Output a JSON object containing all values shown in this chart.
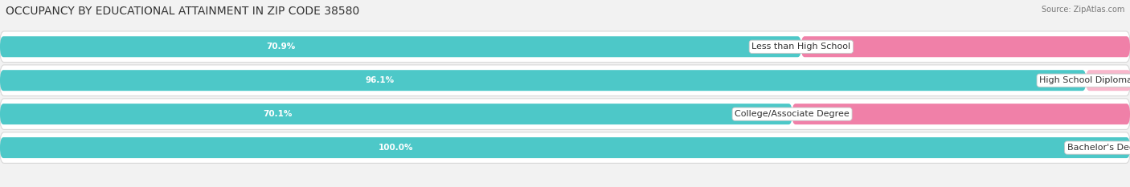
{
  "title": "OCCUPANCY BY EDUCATIONAL ATTAINMENT IN ZIP CODE 38580",
  "source": "Source: ZipAtlas.com",
  "categories": [
    "Less than High School",
    "High School Diploma",
    "College/Associate Degree",
    "Bachelor's Degree or higher"
  ],
  "owner_values": [
    70.9,
    96.1,
    70.1,
    100.0
  ],
  "renter_values": [
    29.1,
    4.0,
    29.9,
    0.0
  ],
  "owner_color": "#4DC8C8",
  "renter_color": "#F080A8",
  "renter_color_light": "#F8B8CC",
  "background_color": "#f2f2f2",
  "row_bg_color": "#ffffff",
  "title_fontsize": 10,
  "label_fontsize": 8,
  "bar_label_fontsize": 7.5,
  "legend_fontsize": 8,
  "source_fontsize": 7
}
